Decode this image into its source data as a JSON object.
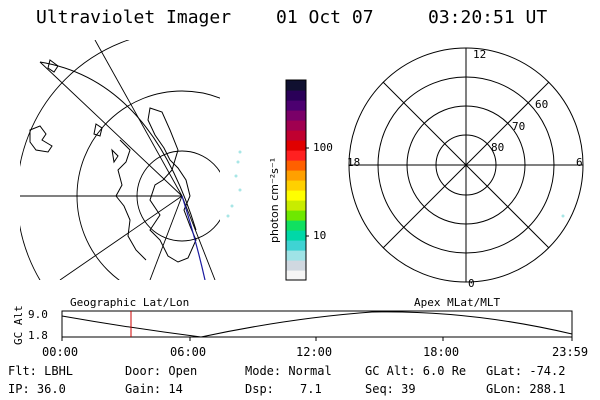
{
  "header": {
    "instrument": "Ultraviolet Imager",
    "date": "01 Oct 07",
    "time": "03:20:51 UT"
  },
  "colorbar": {
    "unit_label": "photon cm⁻²s⁻¹",
    "ticks": [
      "100",
      "10"
    ],
    "colors": [
      "#f5f5f5",
      "#d0d8e0",
      "#9fe3e6",
      "#3fd3d3",
      "#00d8a8",
      "#10e060",
      "#6ee800",
      "#c8ec00",
      "#ffff00",
      "#ffd000",
      "#ffa000",
      "#ff6000",
      "#ff2020",
      "#e00000",
      "#c00030",
      "#a00050",
      "#7a0068",
      "#4c0070",
      "#2a0058",
      "#101030"
    ]
  },
  "polar_plot": {
    "mlt_labels": [
      "12",
      "18",
      "6",
      "0"
    ],
    "mlat_labels": [
      "60",
      "70",
      "80"
    ]
  },
  "timeline": {
    "left_label": "Geographic Lat/Lon",
    "right_label": "Apex MLat/MLT",
    "y_axis_title": "GC Alt",
    "y_ticks": [
      "9.0",
      "1.8"
    ],
    "x_ticks": [
      "00:00",
      "06:00",
      "12:00",
      "18:00",
      "23:59"
    ],
    "current_time_marker_color": "#cc0000"
  },
  "status": {
    "flt": "Flt: LBHL",
    "ip": "IP: 36.0",
    "door": "Door: Open",
    "gain": "Gain: 14",
    "mode": "Mode: Normal",
    "dsp_label": "Dsp:",
    "dsp_value": "7.1",
    "gc_alt": "GC Alt: 6.0 Re",
    "seq": "Seq: 39",
    "glat": "GLat: -74.2",
    "glon": "GLon: 288.1"
  }
}
